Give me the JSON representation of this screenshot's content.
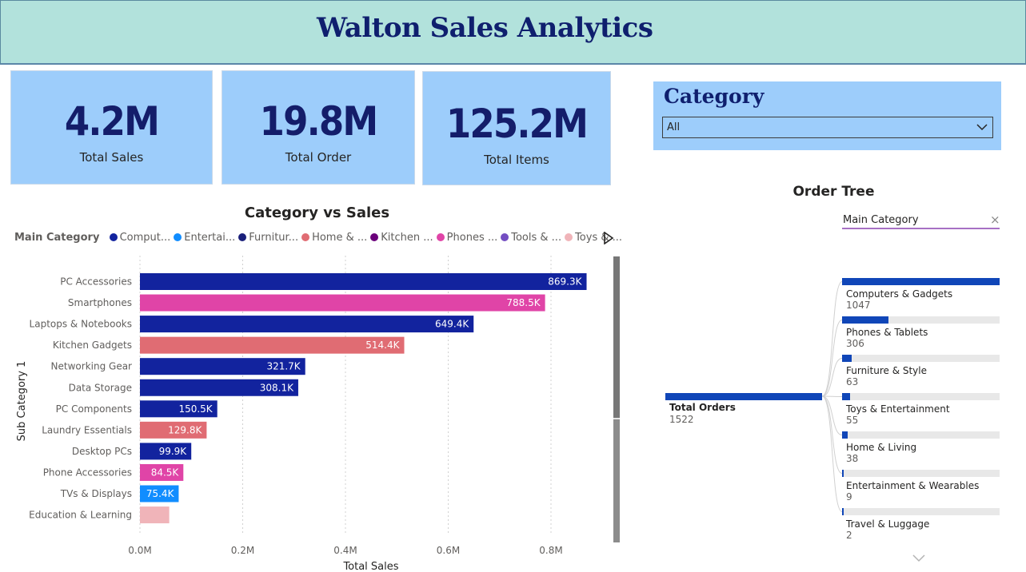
{
  "header": {
    "title": "Walton Sales Analytics"
  },
  "kpis": [
    {
      "value": "4.2M",
      "label": "Total Sales"
    },
    {
      "value": "19.8M",
      "label": "Total Order"
    },
    {
      "value": "125.2M",
      "label": "Total Items"
    }
  ],
  "slicer": {
    "title": "Category",
    "selected": "All"
  },
  "chart": {
    "title": "Category vs Sales",
    "legend_title": "Main Category",
    "legend": [
      {
        "label": "Comput...",
        "color": "#12239e"
      },
      {
        "label": "Entertai...",
        "color": "#118dff"
      },
      {
        "label": "Furnitur...",
        "color": "#1a1f7a"
      },
      {
        "label": "Home & ...",
        "color": "#e06c73"
      },
      {
        "label": "Kitchen ...",
        "color": "#6b007b"
      },
      {
        "label": "Phones ...",
        "color": "#e044a7"
      },
      {
        "label": "Tools & ...",
        "color": "#744ec2"
      },
      {
        "label": "Toys & ...",
        "color": "#f0b4b9"
      }
    ]
  },
  "chart_data": {
    "type": "bar",
    "orientation": "horizontal",
    "title": "Category vs Sales",
    "xlabel": "Total Sales",
    "ylabel": "Sub Category 1",
    "xlim": [
      0,
      900000
    ],
    "x_ticks": [
      "0.0M",
      "0.2M",
      "0.4M",
      "0.6M",
      "0.8M"
    ],
    "grid": "vertical dotted",
    "legend_position": "top-left",
    "categories": [
      "PC Accessories",
      "Smartphones",
      "Laptops & Notebooks",
      "Kitchen Gadgets",
      "Networking Gear",
      "Data Storage",
      "PC Components",
      "Laundry Essentials",
      "Desktop PCs",
      "Phone Accessories",
      "TVs & Displays",
      "Education & Learning"
    ],
    "values": [
      869300,
      788500,
      649400,
      514400,
      321700,
      308100,
      150500,
      129800,
      99900,
      84500,
      75400,
      57000
    ],
    "labels": [
      "869.3K",
      "788.5K",
      "649.4K",
      "514.4K",
      "321.7K",
      "308.1K",
      "150.5K",
      "129.8K",
      "99.9K",
      "84.5K",
      "75.4K",
      ""
    ],
    "colors": [
      "#12239e",
      "#e044a7",
      "#12239e",
      "#e06c73",
      "#12239e",
      "#12239e",
      "#12239e",
      "#e06c73",
      "#12239e",
      "#e044a7",
      "#118dff",
      "#f0b4b9"
    ]
  },
  "order_tree": {
    "title": "Order Tree",
    "level_label": "Main Category",
    "close_icon": "×",
    "root": {
      "label": "Total Orders",
      "value": "1522"
    },
    "nodes": [
      {
        "label": "Computers & Gadgets",
        "value": "1047",
        "count": 1047
      },
      {
        "label": "Phones & Tablets",
        "value": "306",
        "count": 306
      },
      {
        "label": "Furniture & Style",
        "value": "63",
        "count": 63
      },
      {
        "label": "Toys & Entertainment",
        "value": "55",
        "count": 55
      },
      {
        "label": "Home & Living",
        "value": "38",
        "count": 38
      },
      {
        "label": "Entertainment & Wearables",
        "value": "9",
        "count": 9
      },
      {
        "label": "Travel & Luggage",
        "value": "2",
        "count": 2
      }
    ]
  }
}
